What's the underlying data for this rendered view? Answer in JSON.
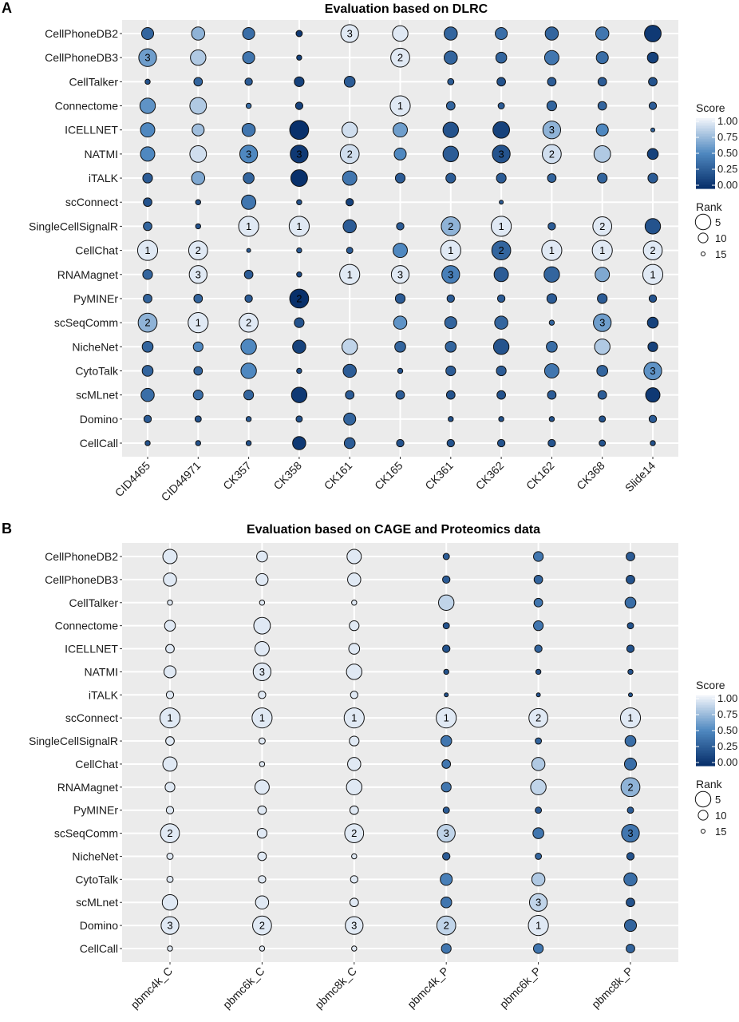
{
  "legend": {
    "score_title": "Score",
    "score_ticks": [
      "1.00",
      "0.75",
      "0.50",
      "0.25",
      "0.00"
    ],
    "rank_title": "Rank",
    "rank_ticks": [
      "5",
      "10",
      "15"
    ]
  },
  "colors": {
    "low": "#08306b",
    "mid": "#4f88c0",
    "high": "#f0f4fa",
    "panel_bg": "#ebebeb",
    "grid": "#ffffff"
  },
  "chart_data": [
    {
      "type": "scatter",
      "panel_label": "A",
      "title": "Evaluation based on DLRC",
      "rows": [
        "CellPhoneDB2",
        "CellPhoneDB3",
        "CellTalker",
        "Connectome",
        "ICELLNET",
        "NATMI",
        "iTALK",
        "scConnect",
        "SingleCellSignalR",
        "CellChat",
        "RNAMagnet",
        "PyMINEr",
        "scSeqComm",
        "NicheNet",
        "CytoTalk",
        "scMLnet",
        "Domino",
        "CellCall"
      ],
      "columns": [
        "CID4465",
        "CID44971",
        "CK357",
        "CK358",
        "CK161",
        "CK165",
        "CK361",
        "CK362",
        "CK162",
        "CK368",
        "Slide14"
      ],
      "size": [
        [
          8,
          7,
          8,
          13,
          3,
          5,
          7,
          8,
          7,
          7,
          4
        ],
        [
          3,
          5,
          8,
          14,
          null,
          2,
          7,
          9,
          6,
          8,
          9
        ],
        [
          14,
          11,
          12,
          10,
          9,
          null,
          13,
          11,
          11,
          11,
          11
        ],
        [
          5,
          4,
          14,
          12,
          null,
          1,
          11,
          13,
          10,
          11,
          12
        ],
        [
          6,
          8,
          7,
          2,
          5,
          6,
          5,
          4,
          3,
          8,
          15
        ],
        [
          6,
          4,
          3,
          3,
          2,
          8,
          5,
          3,
          2,
          4,
          9
        ],
        [
          10,
          7,
          9,
          4,
          6,
          10,
          10,
          10,
          11,
          10,
          10
        ],
        [
          11,
          14,
          6,
          14,
          12,
          null,
          null,
          15,
          null,
          null,
          null
        ],
        [
          11,
          14,
          1,
          1,
          7,
          12,
          2,
          1,
          12,
          2,
          5
        ],
        [
          1,
          2,
          15,
          14,
          13,
          6,
          1,
          2,
          1,
          1,
          2
        ],
        [
          10,
          3,
          11,
          14,
          1,
          3,
          3,
          6,
          5,
          6,
          1
        ],
        [
          11,
          11,
          12,
          2,
          null,
          10,
          12,
          12,
          10,
          10,
          12
        ],
        [
          2,
          1,
          2,
          10,
          null,
          7,
          8,
          7,
          14,
          3,
          9
        ],
        [
          9,
          10,
          5,
          7,
          5,
          9,
          9,
          5,
          9,
          5,
          10
        ],
        [
          9,
          11,
          5,
          14,
          7,
          14,
          10,
          10,
          6,
          9,
          3
        ],
        [
          7,
          10,
          10,
          5,
          11,
          11,
          11,
          11,
          11,
          11,
          6
        ],
        [
          12,
          13,
          14,
          13,
          8,
          null,
          14,
          14,
          14,
          13,
          12
        ],
        [
          14,
          14,
          14,
          7,
          9,
          12,
          12,
          12,
          12,
          13,
          14
        ]
      ],
      "score": [
        [
          0.3,
          0.7,
          0.35,
          0.05,
          0.95,
          0.95,
          0.3,
          0.35,
          0.3,
          0.4,
          0.05
        ],
        [
          0.6,
          0.8,
          0.4,
          0.1,
          null,
          0.95,
          0.3,
          0.3,
          0.4,
          0.35,
          0.1
        ],
        [
          0.2,
          0.3,
          0.25,
          0.1,
          0.25,
          null,
          0.25,
          0.2,
          0.25,
          0.25,
          0.2
        ],
        [
          0.55,
          0.8,
          0.35,
          0.1,
          null,
          0.95,
          0.3,
          0.25,
          0.3,
          0.3,
          0.25
        ],
        [
          0.5,
          0.75,
          0.4,
          0.0,
          0.9,
          0.6,
          0.2,
          0.1,
          0.7,
          0.5,
          0.3
        ],
        [
          0.5,
          0.9,
          0.5,
          0.05,
          0.9,
          0.5,
          0.25,
          0.2,
          0.9,
          0.8,
          0.1
        ],
        [
          0.25,
          0.65,
          0.3,
          0.0,
          0.4,
          0.25,
          0.25,
          0.25,
          0.3,
          0.3,
          0.25
        ],
        [
          0.2,
          0.2,
          0.4,
          0.2,
          0.1,
          null,
          null,
          0.25,
          null,
          null,
          null
        ],
        [
          0.3,
          0.2,
          0.95,
          0.95,
          0.25,
          0.25,
          0.7,
          0.95,
          0.25,
          0.95,
          0.2
        ],
        [
          0.95,
          0.95,
          0.25,
          0.25,
          0.25,
          0.5,
          0.95,
          0.3,
          0.95,
          0.95,
          0.95
        ],
        [
          0.3,
          0.95,
          0.25,
          0.15,
          0.95,
          0.95,
          0.45,
          0.25,
          0.3,
          0.65,
          0.95
        ],
        [
          0.3,
          0.3,
          0.25,
          0.0,
          null,
          0.25,
          0.25,
          0.25,
          0.25,
          0.25,
          0.2
        ],
        [
          0.7,
          0.95,
          0.95,
          0.2,
          null,
          0.55,
          0.3,
          0.3,
          0.3,
          0.6,
          0.1
        ],
        [
          0.3,
          0.5,
          0.5,
          0.1,
          0.85,
          0.3,
          0.3,
          0.2,
          0.35,
          0.8,
          0.1
        ],
        [
          0.3,
          0.3,
          0.5,
          0.2,
          0.25,
          0.2,
          0.25,
          0.25,
          0.4,
          0.3,
          0.55
        ],
        [
          0.35,
          0.35,
          0.3,
          0.05,
          0.25,
          0.25,
          0.2,
          0.2,
          0.25,
          0.25,
          0.05
        ],
        [
          0.25,
          0.2,
          0.25,
          0.2,
          0.3,
          null,
          0.2,
          0.2,
          0.2,
          0.2,
          0.25
        ],
        [
          0.2,
          0.2,
          0.2,
          0.05,
          0.25,
          0.2,
          0.2,
          0.2,
          0.2,
          0.2,
          0.2
        ]
      ],
      "rank_labels": [
        [
          null,
          null,
          null,
          null,
          "3",
          null,
          null,
          null,
          null,
          null,
          null
        ],
        [
          "3",
          null,
          null,
          null,
          null,
          "2",
          null,
          null,
          null,
          null,
          null
        ],
        [
          null,
          null,
          null,
          null,
          null,
          null,
          null,
          null,
          null,
          null,
          null
        ],
        [
          null,
          null,
          null,
          null,
          null,
          "1",
          null,
          null,
          null,
          null,
          null
        ],
        [
          null,
          null,
          null,
          null,
          null,
          null,
          null,
          null,
          "3",
          null,
          null
        ],
        [
          null,
          null,
          "3",
          "3",
          "2",
          null,
          null,
          "3",
          "2",
          null,
          null
        ],
        [
          null,
          null,
          null,
          null,
          null,
          null,
          null,
          null,
          null,
          null,
          null
        ],
        [
          null,
          null,
          null,
          null,
          null,
          null,
          null,
          null,
          null,
          null,
          null
        ],
        [
          null,
          null,
          "1",
          "1",
          null,
          null,
          "2",
          "1",
          null,
          "2",
          null
        ],
        [
          "1",
          "2",
          null,
          null,
          null,
          null,
          "1",
          "2",
          "1",
          "1",
          "2"
        ],
        [
          null,
          "3",
          null,
          null,
          "1",
          "3",
          "3",
          null,
          null,
          null,
          "1"
        ],
        [
          null,
          null,
          null,
          "2",
          null,
          null,
          null,
          null,
          null,
          null,
          null
        ],
        [
          "2",
          "1",
          "2",
          null,
          null,
          null,
          null,
          null,
          null,
          "3",
          null
        ],
        [
          null,
          null,
          null,
          null,
          null,
          null,
          null,
          null,
          null,
          null,
          null
        ],
        [
          null,
          null,
          null,
          null,
          null,
          null,
          null,
          null,
          null,
          null,
          "3"
        ],
        [
          null,
          null,
          null,
          null,
          null,
          null,
          null,
          null,
          null,
          null,
          null
        ],
        [
          null,
          null,
          null,
          null,
          null,
          null,
          null,
          null,
          null,
          null,
          null
        ],
        [
          null,
          null,
          null,
          null,
          null,
          null,
          null,
          null,
          null,
          null,
          null
        ]
      ]
    },
    {
      "type": "scatter",
      "panel_label": "B",
      "title": "Evaluation based on CAGE and Proteomics data",
      "rows": [
        "CellPhoneDB2",
        "CellPhoneDB3",
        "CellTalker",
        "Connectome",
        "ICELLNET",
        "NATMI",
        "iTALK",
        "scConnect",
        "SingleCellSignalR",
        "CellChat",
        "RNAMagnet",
        "PyMINEr",
        "scSeqComm",
        "NicheNet",
        "CytoTalk",
        "scMLnet",
        "Domino",
        "CellCall"
      ],
      "columns": [
        "pbmc4k_C",
        "pbmc6k_C",
        "pbmc8k_C",
        "pbmc4k_P",
        "pbmc6k_P",
        "pbmc8k_P"
      ],
      "size": [
        [
          6,
          9,
          6,
          13,
          10,
          11
        ],
        [
          7,
          8,
          7,
          12,
          11,
          11
        ],
        [
          14,
          14,
          14,
          5,
          11,
          9
        ],
        [
          9,
          4,
          10,
          13,
          10,
          13
        ],
        [
          11,
          6,
          9,
          12,
          12,
          12
        ],
        [
          8,
          3,
          5,
          14,
          14,
          14
        ],
        [
          12,
          12,
          12,
          15,
          15,
          15
        ],
        [
          1,
          1,
          1,
          1,
          2,
          1
        ],
        [
          11,
          13,
          10,
          9,
          13,
          9
        ],
        [
          6,
          14,
          7,
          11,
          7,
          8
        ],
        [
          10,
          6,
          5,
          10,
          5,
          2
        ],
        [
          12,
          11,
          11,
          13,
          13,
          13
        ],
        [
          2,
          10,
          2,
          3,
          9,
          3
        ],
        [
          13,
          11,
          14,
          12,
          13,
          12
        ],
        [
          13,
          12,
          12,
          8,
          7,
          7
        ],
        [
          5,
          7,
          11,
          9,
          3,
          11
        ],
        [
          3,
          2,
          3,
          2,
          1,
          8
        ],
        [
          14,
          14,
          14,
          10,
          10,
          11
        ]
      ],
      "score": [
        [
          0.95,
          0.95,
          0.95,
          0.25,
          0.4,
          0.25
        ],
        [
          0.95,
          0.95,
          0.95,
          0.25,
          0.3,
          0.2
        ],
        [
          0.95,
          0.95,
          0.95,
          0.85,
          0.4,
          0.35
        ],
        [
          0.95,
          0.95,
          0.95,
          0.2,
          0.4,
          0.2
        ],
        [
          0.95,
          0.95,
          0.95,
          0.2,
          0.3,
          0.2
        ],
        [
          0.95,
          0.95,
          0.95,
          0.2,
          0.2,
          0.2
        ],
        [
          0.95,
          0.95,
          0.95,
          0.2,
          0.2,
          0.2
        ],
        [
          0.95,
          0.95,
          0.95,
          0.95,
          0.95,
          0.95
        ],
        [
          0.95,
          0.95,
          0.95,
          0.4,
          0.3,
          0.35
        ],
        [
          0.95,
          0.95,
          0.95,
          0.4,
          0.8,
          0.35
        ],
        [
          0.95,
          0.95,
          0.95,
          0.4,
          0.85,
          0.7
        ],
        [
          0.95,
          0.95,
          0.95,
          0.25,
          0.25,
          0.25
        ],
        [
          0.95,
          0.95,
          0.95,
          0.85,
          0.4,
          0.4
        ],
        [
          0.95,
          0.95,
          0.95,
          0.25,
          0.3,
          0.2
        ],
        [
          0.95,
          0.95,
          0.95,
          0.45,
          0.8,
          0.35
        ],
        [
          0.95,
          0.95,
          0.95,
          0.4,
          0.85,
          0.2
        ],
        [
          0.95,
          0.95,
          0.95,
          0.85,
          0.95,
          0.3
        ],
        [
          0.95,
          0.95,
          0.95,
          0.4,
          0.4,
          0.3
        ]
      ],
      "rank_labels": [
        [
          null,
          null,
          null,
          null,
          null,
          null
        ],
        [
          null,
          null,
          null,
          null,
          null,
          null
        ],
        [
          null,
          null,
          null,
          null,
          null,
          null
        ],
        [
          null,
          null,
          null,
          null,
          null,
          null
        ],
        [
          null,
          null,
          null,
          null,
          null,
          null
        ],
        [
          null,
          "3",
          null,
          null,
          null,
          null
        ],
        [
          null,
          null,
          null,
          null,
          null,
          null
        ],
        [
          "1",
          "1",
          "1",
          "1",
          "2",
          "1"
        ],
        [
          null,
          null,
          null,
          null,
          null,
          null
        ],
        [
          null,
          null,
          null,
          null,
          null,
          null
        ],
        [
          null,
          null,
          null,
          null,
          null,
          "2"
        ],
        [
          null,
          null,
          null,
          null,
          null,
          null
        ],
        [
          "2",
          null,
          "2",
          "3",
          null,
          "3"
        ],
        [
          null,
          null,
          null,
          null,
          null,
          null
        ],
        [
          null,
          null,
          null,
          null,
          null,
          null
        ],
        [
          null,
          null,
          null,
          null,
          "3",
          null
        ],
        [
          "3",
          "2",
          "3",
          "2",
          "1",
          null
        ],
        [
          null,
          null,
          null,
          null,
          null,
          null
        ]
      ]
    }
  ]
}
